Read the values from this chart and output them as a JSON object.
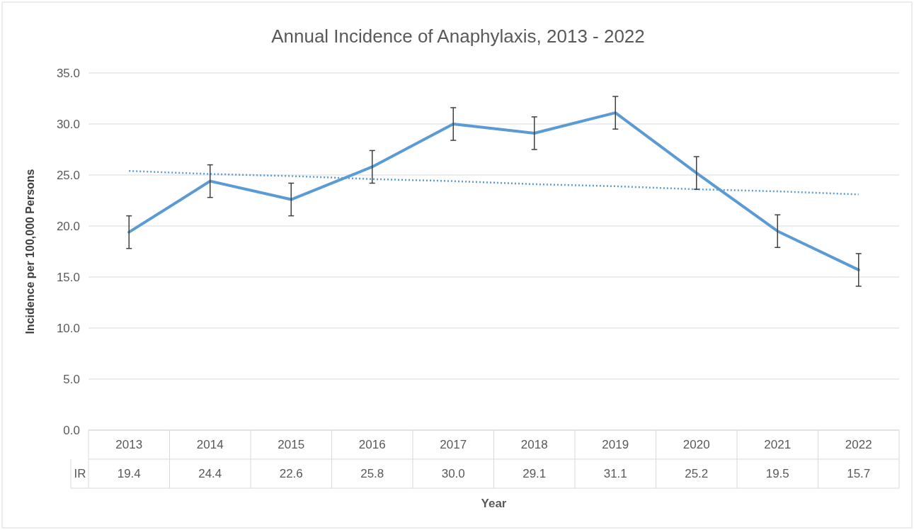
{
  "chart_data": {
    "type": "line",
    "title": "Annual Incidence of Anaphylaxis, 2013 - 2022",
    "xlabel": "Year",
    "ylabel": "Incidence per 100,000 Persons",
    "categories": [
      "2013",
      "2014",
      "2015",
      "2016",
      "2017",
      "2018",
      "2019",
      "2020",
      "2021",
      "2022"
    ],
    "ylim": [
      0,
      35
    ],
    "yticks": [
      {
        "value": 0,
        "label": "0.0"
      },
      {
        "value": 5,
        "label": "5.0"
      },
      {
        "value": 10,
        "label": "10.0"
      },
      {
        "value": 15,
        "label": "15.0"
      },
      {
        "value": 20,
        "label": "20.0"
      },
      {
        "value": 25,
        "label": "25.0"
      },
      {
        "value": 30,
        "label": "30.0"
      },
      {
        "value": 35,
        "label": "35.0"
      }
    ],
    "grid": "y",
    "marker": "none",
    "series": [
      {
        "name": "IR",
        "color": "#5b9bd5",
        "line_style": "solid",
        "values": [
          19.4,
          24.4,
          22.6,
          25.8,
          30.0,
          29.1,
          31.1,
          25.2,
          19.5,
          15.7
        ],
        "errors": [
          1.6,
          1.6,
          1.6,
          1.6,
          1.6,
          1.6,
          1.6,
          1.6,
          1.6,
          1.6
        ],
        "value_labels": [
          "19.4",
          "24.4",
          "22.6",
          "25.8",
          "30.0",
          "29.1",
          "31.1",
          "25.2",
          "19.5",
          "15.7"
        ]
      },
      {
        "type": "line",
        "color": "#5b9bd5",
        "line_style": "dotted",
        "values": [
          25.4,
          25.1,
          24.9,
          24.6,
          24.4,
          24.1,
          23.9,
          23.6,
          23.4,
          23.1
        ]
      }
    ]
  }
}
